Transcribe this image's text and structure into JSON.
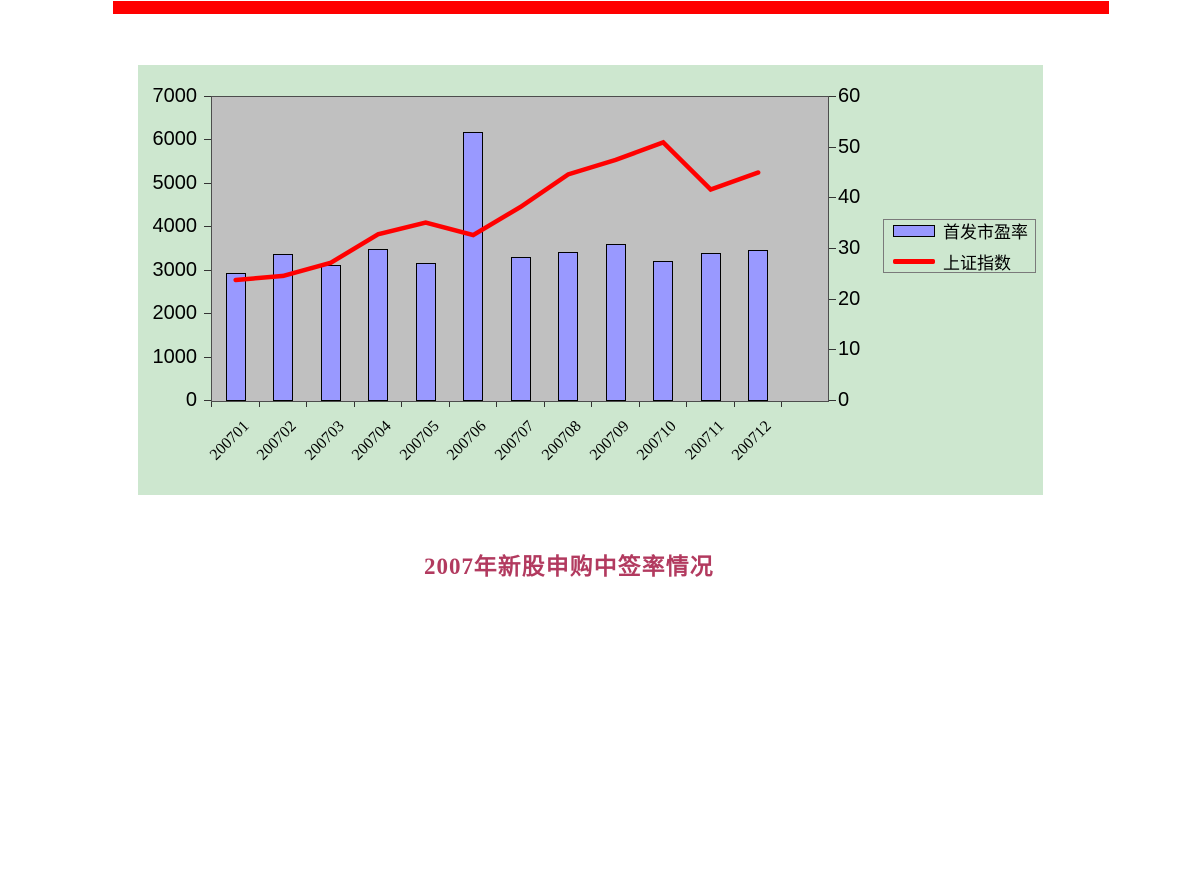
{
  "page": {
    "background": "#ffffff",
    "top_bar_color": "#ff0000"
  },
  "chart_data": {
    "type": "bar+line",
    "categories": [
      "200701",
      "200702",
      "200703",
      "200704",
      "200705",
      "200706",
      "200707",
      "200708",
      "200709",
      "200710",
      "200711",
      "200712"
    ],
    "series": [
      {
        "name": "首发市盈率",
        "type": "bar",
        "axis": "right",
        "color": "#9999ff",
        "values": [
          25.2,
          29.1,
          26.9,
          30.1,
          27.2,
          53.1,
          28.5,
          29.4,
          31.0,
          27.6,
          29.3,
          29.9
        ]
      },
      {
        "name": "上证指数",
        "type": "line",
        "axis": "left",
        "color": "#ff0000",
        "values": [
          2786,
          2881,
          3183,
          3841,
          4109,
          3820,
          4471,
          5218,
          5552,
          5954,
          4871,
          5261
        ]
      }
    ],
    "left_axis": {
      "min": 0,
      "max": 7000,
      "step": 1000,
      "tick_labels": [
        "0",
        "1000",
        "2000",
        "3000",
        "4000",
        "5000",
        "6000",
        "7000"
      ]
    },
    "right_axis": {
      "min": 0,
      "max": 60,
      "step": 10,
      "tick_labels": [
        "0",
        "10",
        "20",
        "30",
        "40",
        "50",
        "60"
      ]
    },
    "legend_position": "right",
    "grid": false,
    "plot_bg": "#c0c0c0",
    "panel_bg": "#cde7cf"
  },
  "caption": {
    "text": "2007年新股申购中签率情况",
    "color": "#b23a5f"
  }
}
